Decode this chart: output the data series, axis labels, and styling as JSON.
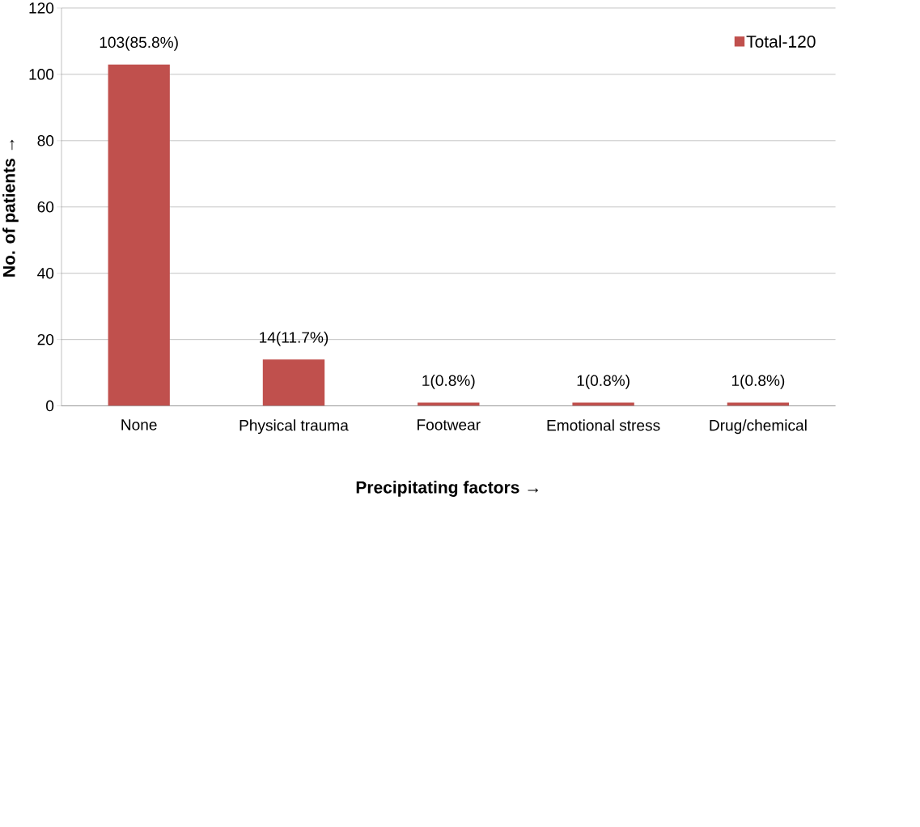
{
  "chart_data": {
    "type": "bar",
    "xlabel": "Precipitating factors →",
    "ylabel": "No. of patients →",
    "categories": [
      "None",
      "Physical trauma",
      "Footwear",
      "Emotional stress",
      "Drug/chemical"
    ],
    "series": [
      {
        "name": "Total-120",
        "color": "#c0504d",
        "values": [
          103,
          14,
          1,
          1,
          1
        ],
        "value_labels": [
          "103(85.8%)",
          "14(11.7%)",
          "1(0.8%)",
          "1(0.8%)",
          "1(0.8%)"
        ]
      }
    ],
    "ylim": [
      0,
      120
    ],
    "yticks": [
      0,
      20,
      40,
      60,
      80,
      100,
      120
    ],
    "grid": "y",
    "legend": "top right"
  }
}
